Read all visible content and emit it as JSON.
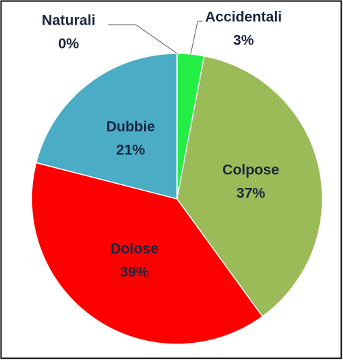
{
  "chart_data": {
    "type": "pie",
    "categories": [
      "Naturali",
      "Accidentali",
      "Colpose",
      "Dolose",
      "Dubbie"
    ],
    "values": [
      0,
      3,
      37,
      39,
      21
    ],
    "value_labels": [
      "0%",
      "3%",
      "37%",
      "39%",
      "21%"
    ],
    "colors": [
      "#d9d9d9",
      "#22ee44",
      "#9bbb59",
      "#ff0000",
      "#4bacc6"
    ],
    "start_angle": 0,
    "direction": "clockwise"
  }
}
